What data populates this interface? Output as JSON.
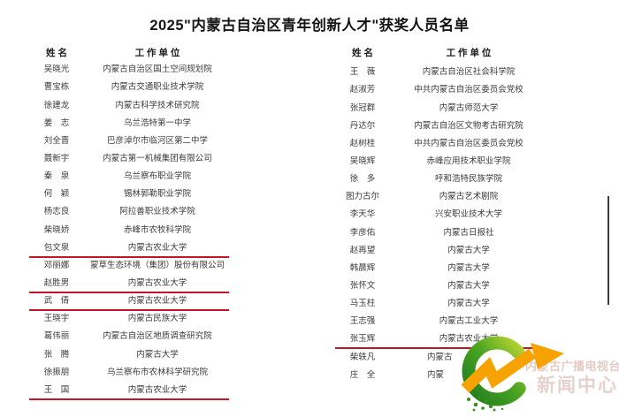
{
  "title": "2025\"内蒙古自治区青年创新人才\"获奖人员名单",
  "headers": {
    "name": "姓  名",
    "unit": "工 作 单 位"
  },
  "left_rows": [
    {
      "name": "吴晓光",
      "unit": "内蒙古自治区国土空间规划院",
      "underline": false
    },
    {
      "name": "曹宝栋",
      "unit": "内蒙古交通职业技术学院",
      "underline": false
    },
    {
      "name": "徐建龙",
      "unit": "内蒙古科学技术研究院",
      "underline": false
    },
    {
      "name": "姜　志",
      "unit": "乌兰浩特第一中学",
      "underline": false
    },
    {
      "name": "刘全晋",
      "unit": "巴彦淖尔市临河区第二中学",
      "underline": false
    },
    {
      "name": "聂新宇",
      "unit": "内蒙古第一机械集团有限公司",
      "underline": false
    },
    {
      "name": "秦　泉",
      "unit": "乌兰察布职业学院",
      "underline": false
    },
    {
      "name": "何　颖",
      "unit": "锡林郭勒职业学院",
      "underline": false
    },
    {
      "name": "杨志良",
      "unit": "阿拉善职业技术学院",
      "underline": false
    },
    {
      "name": "柴晓娇",
      "unit": "赤峰市农牧科学院",
      "underline": false
    },
    {
      "name": "包文泉",
      "unit": "内蒙古农业大学",
      "underline": true
    },
    {
      "name": "邓丽娜",
      "unit": "蒙草生态环境（集团）股份有限公司",
      "underline": false
    },
    {
      "name": "赵胜男",
      "unit": "内蒙古农业大学",
      "underline": true
    },
    {
      "name": "武　倩",
      "unit": "内蒙古农业大学",
      "underline": true
    },
    {
      "name": "王晓宇",
      "unit": "内蒙古民族大学",
      "underline": false
    },
    {
      "name": "葛伟丽",
      "unit": "内蒙古自治区地质调查研究院",
      "underline": false
    },
    {
      "name": "张　腾",
      "unit": "内蒙古大学",
      "underline": false
    },
    {
      "name": "徐振朋",
      "unit": "乌兰察布市农林科学研究院",
      "underline": false
    },
    {
      "name": "王　国",
      "unit": "内蒙古农业大学",
      "underline": true
    }
  ],
  "right_rows": [
    {
      "name": "王　薇",
      "unit": "内蒙古自治区社会科学院",
      "underline": false
    },
    {
      "name": "赵淑芳",
      "unit": "中共内蒙古自治区委员会党校",
      "underline": false
    },
    {
      "name": "张冠群",
      "unit": "内蒙古师范大学",
      "underline": false
    },
    {
      "name": "丹达尔",
      "unit": "内蒙古自治区文物考古研究院",
      "underline": false
    },
    {
      "name": "赵树桂",
      "unit": "中共内蒙古自治区委员会党校",
      "underline": false
    },
    {
      "name": "吴晓辉",
      "unit": "赤峰应用技术职业学院",
      "underline": false
    },
    {
      "name": "徐　多",
      "unit": "呼和浩特民族学院",
      "underline": false
    },
    {
      "name": "图力古尔",
      "unit": "内蒙古艺术剧院",
      "underline": false
    },
    {
      "name": "李天华",
      "unit": "兴安职业技术大学",
      "underline": false
    },
    {
      "name": "李彦佑",
      "unit": "内蒙古日报社",
      "underline": false
    },
    {
      "name": "赵再望",
      "unit": "内蒙古大学",
      "underline": false
    },
    {
      "name": "韩晨辉",
      "unit": "内蒙古大学",
      "underline": false
    },
    {
      "name": "张怀文",
      "unit": "内蒙古大学",
      "underline": false
    },
    {
      "name": "马玉柱",
      "unit": "内蒙古大学",
      "underline": false
    },
    {
      "name": "王志强",
      "unit": "内蒙古工业大学",
      "underline": false
    },
    {
      "name": "张玉辉",
      "unit": "内蒙古农业大学",
      "underline": true
    },
    {
      "name": "柴轶凡",
      "unit": "内蒙古",
      "underline": false,
      "partial": true
    },
    {
      "name": "庄　全",
      "unit": "内蒙",
      "underline": false,
      "partial": true
    }
  ],
  "watermark": {
    "line1": "内蒙古广播电视台",
    "line2": "新闻中心"
  },
  "colors": {
    "underline_red": "#c41425",
    "text": "#3a3a3a",
    "title": "#151515",
    "logo_green_dark": "#1f7a1f",
    "logo_green_light": "#b8d432",
    "logo_orange": "#f6a200",
    "watermark": "#c8988e"
  }
}
